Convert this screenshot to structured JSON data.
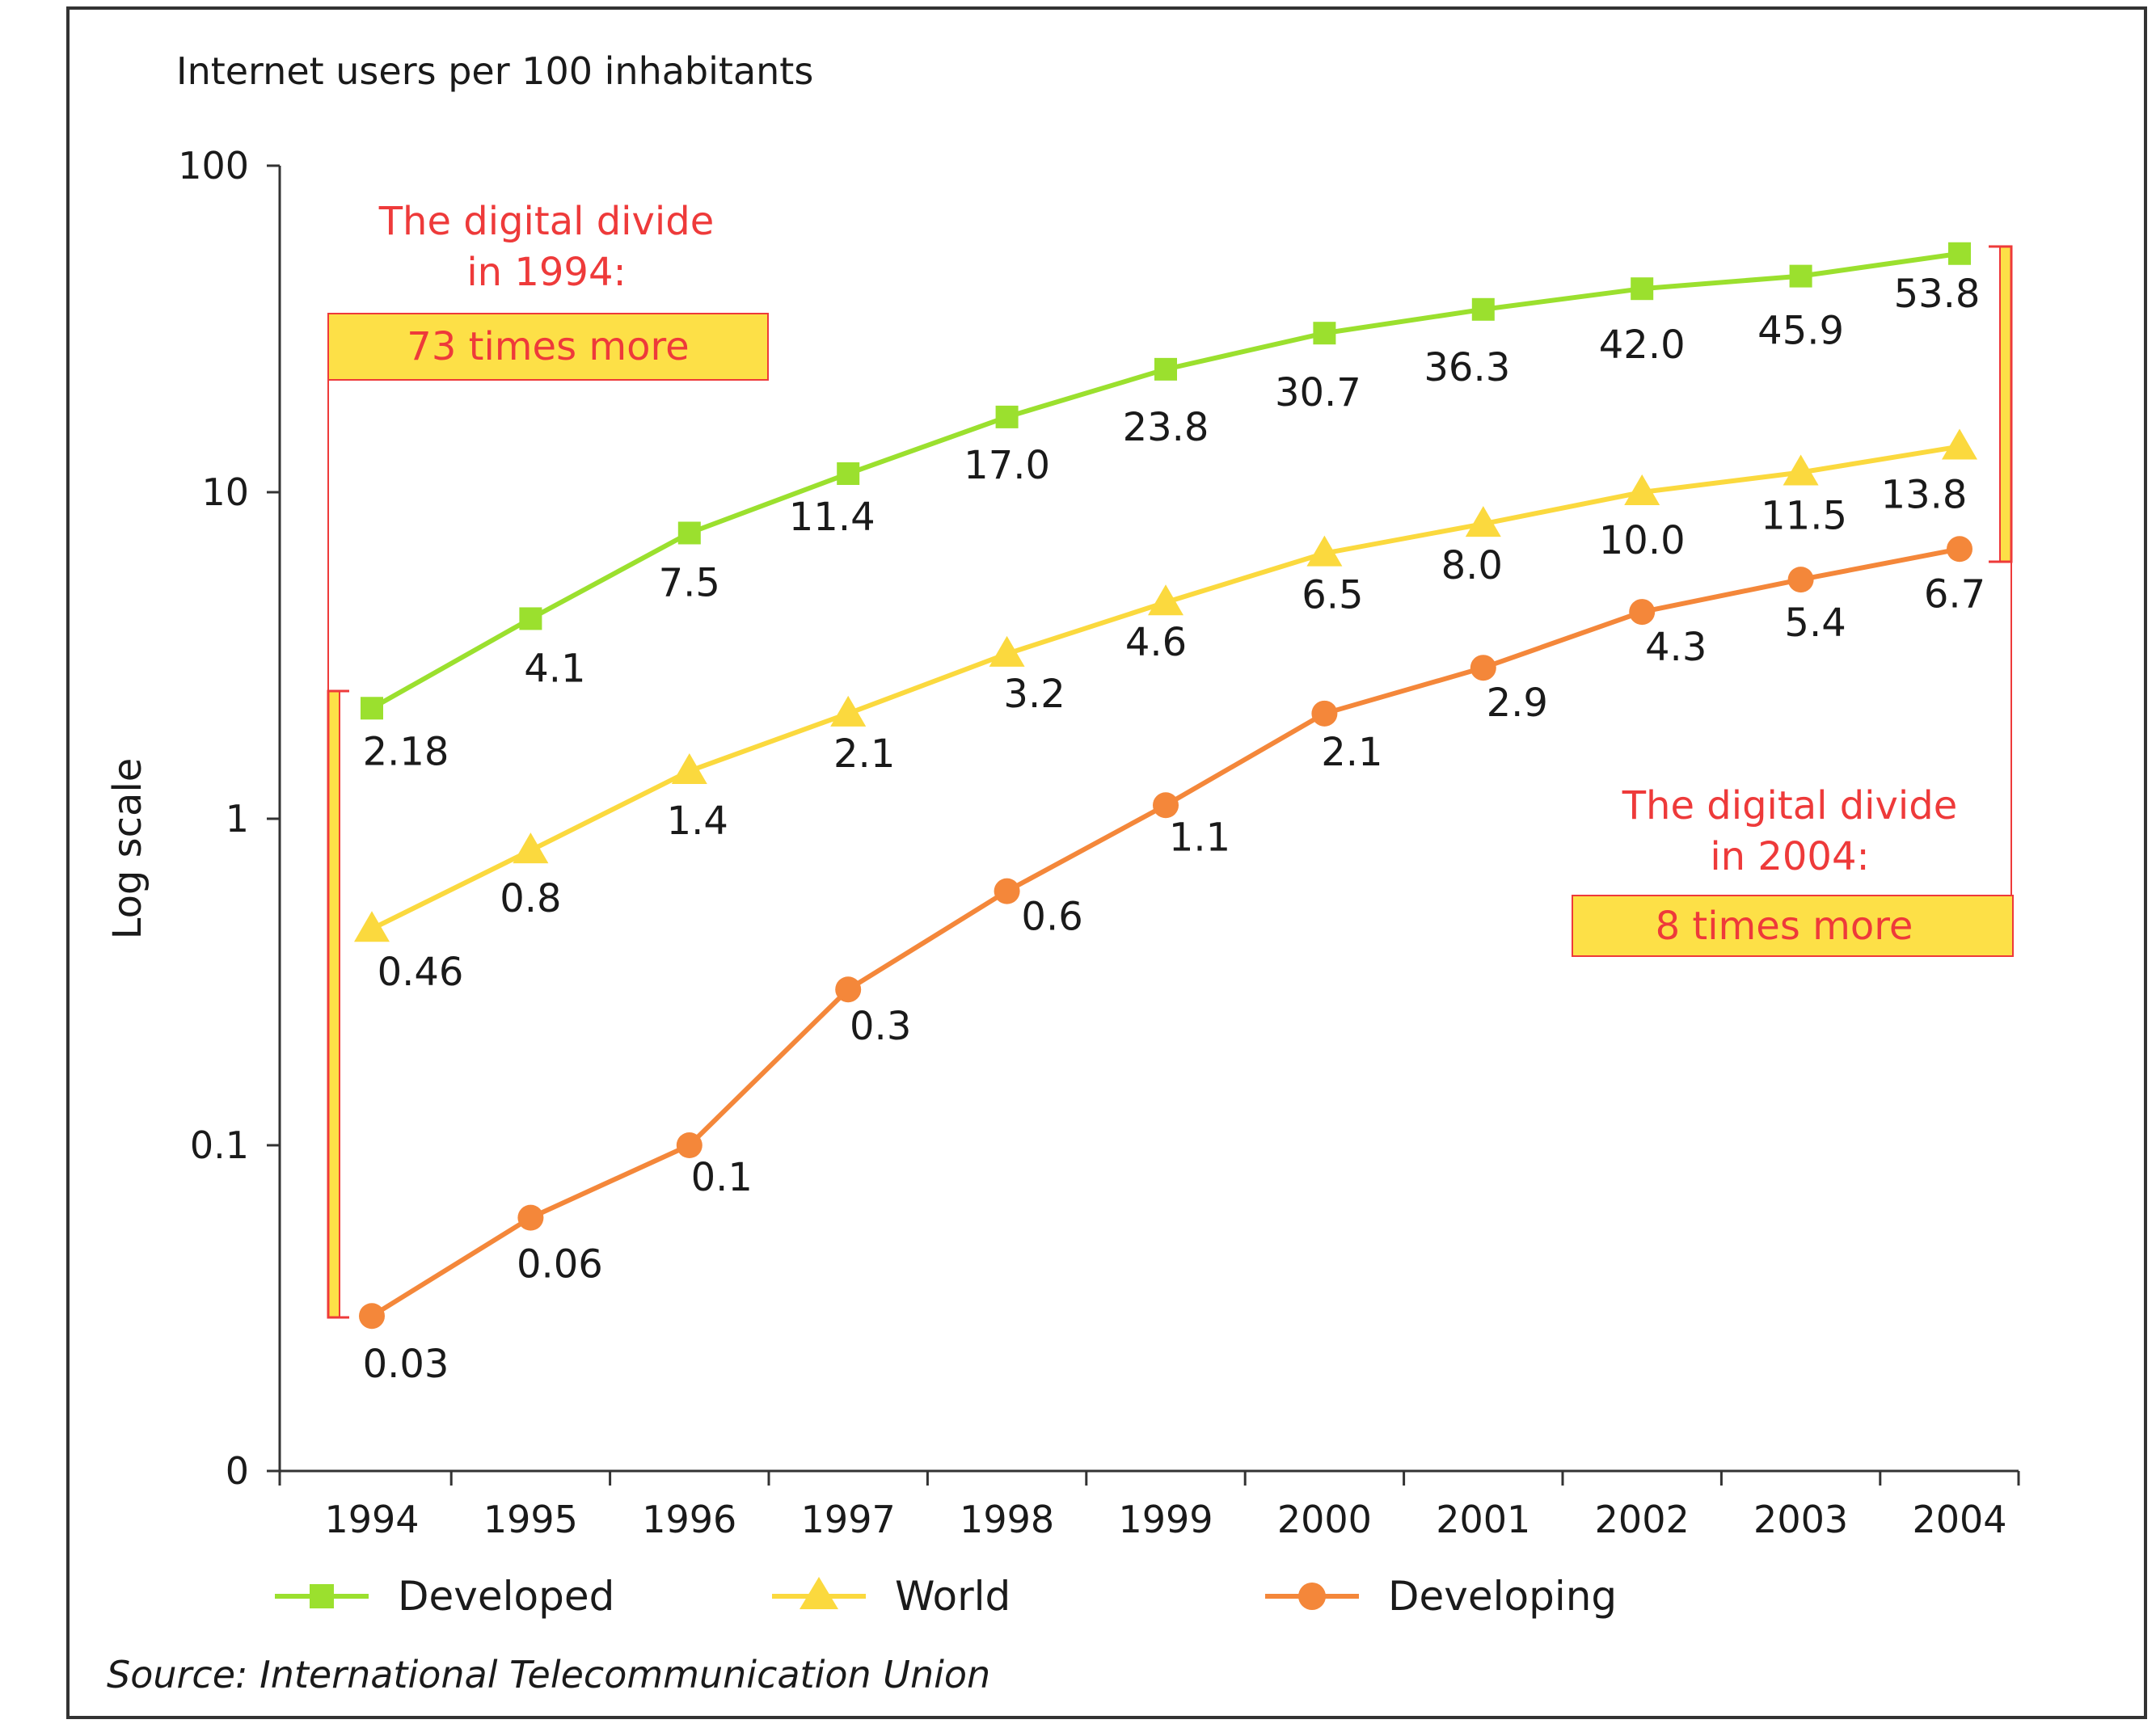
{
  "chart_data": {
    "type": "line",
    "title": "Internet users per 100 inhabitants",
    "ylabel": "Log scale",
    "yscale": "log",
    "y_tick_labels": [
      "100",
      "10",
      "1",
      "0.1",
      "0"
    ],
    "x": [
      "1994",
      "1995",
      "1996",
      "1997",
      "1998",
      "1999",
      "2000",
      "2001",
      "2002",
      "2003",
      "2004"
    ],
    "series": [
      {
        "name": "Developed",
        "marker": "square",
        "color": "#9be02e",
        "values": [
          2.18,
          4.1,
          7.5,
          11.4,
          17.0,
          23.8,
          30.7,
          36.3,
          42.0,
          45.9,
          53.8
        ],
        "labels": [
          "2.18",
          "4.1",
          "7.5",
          "11.4",
          "17.0",
          "23.8",
          "30.7",
          "36.3",
          "42.0",
          "45.9",
          "53.8"
        ]
      },
      {
        "name": "World",
        "marker": "triangle",
        "color": "#fbd93e",
        "values": [
          0.46,
          0.8,
          1.4,
          2.1,
          3.2,
          4.6,
          6.5,
          8.0,
          10.0,
          11.5,
          13.8
        ],
        "labels": [
          "0.46",
          "0.8",
          "1.4",
          "2.1",
          "3.2",
          "4.6",
          "6.5",
          "8.0",
          "10.0",
          "11.5",
          "13.8"
        ]
      },
      {
        "name": "Developing",
        "marker": "circle",
        "color": "#f4873a",
        "values": [
          0.03,
          0.06,
          0.1,
          0.3,
          0.6,
          1.1,
          2.1,
          2.9,
          4.3,
          5.4,
          6.7
        ],
        "labels": [
          "0.03",
          "0.06",
          "0.1",
          "0.3",
          "0.6",
          "1.1",
          "2.1",
          "2.9",
          "4.3",
          "5.4",
          "6.7"
        ]
      }
    ],
    "annotations": [
      {
        "lines": [
          "The digital divide",
          "in 1994:"
        ],
        "box": "73 times more"
      },
      {
        "lines": [
          "The digital divide",
          "in 2004:"
        ],
        "box": "8 times more"
      }
    ],
    "legend_position": "bottom",
    "grid": false
  },
  "source": "Source: International Telecommunication Union",
  "colors": {
    "annotation": "#ee3a3a",
    "box_fill": "#fde047",
    "frame": "#333333"
  }
}
